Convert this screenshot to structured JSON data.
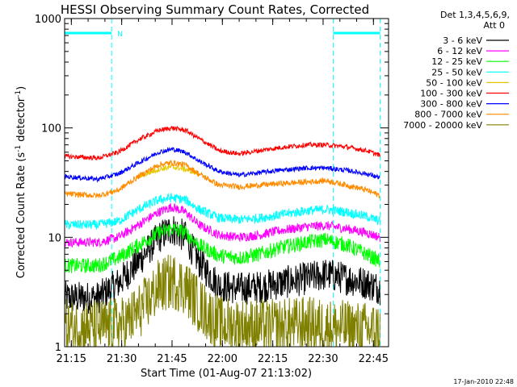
{
  "chart_data": {
    "type": "line",
    "title": "HESSI Observing Summary Count Rates, Corrected",
    "xlabel": "Start Time (01-Aug-07 21:13:02)",
    "ylabel_main": "Corrected Count Rate (s",
    "ylabel_sup1": "-1",
    "ylabel_mid": " detector",
    "ylabel_sup2": "-1",
    "ylabel_end": ")",
    "y_scale": "log",
    "ylim": [
      1,
      1000
    ],
    "x_unit": "minutes since 21:13:02",
    "xlim": [
      0,
      96.5
    ],
    "x_ticks": [
      {
        "label": "21:15",
        "value": 2
      },
      {
        "label": "21:30",
        "value": 17
      },
      {
        "label": "21:45",
        "value": 32
      },
      {
        "label": "22:00",
        "value": 47
      },
      {
        "label": "22:15",
        "value": 62
      },
      {
        "label": "22:30",
        "value": 77
      },
      {
        "label": "22:45",
        "value": 92
      }
    ],
    "y_ticks": [
      {
        "label": "1",
        "value": 1
      },
      {
        "label": "10",
        "value": 10
      },
      {
        "label": "100",
        "value": 100
      },
      {
        "label": "1000",
        "value": 1000
      }
    ],
    "legend_header_1": "Det 1,3,4,5,6,9,",
    "legend_header_2": "Att 0",
    "legend_placement": "outside-right",
    "night_marks": [
      14,
      80,
      94
    ],
    "night_label": "N",
    "night_bars": [
      [
        0,
        14
      ],
      [
        80,
        94
      ]
    ],
    "series": [
      {
        "name": "3 - 6 keV",
        "color": "#000000",
        "points": [
          [
            0,
            2.8
          ],
          [
            10,
            2.8
          ],
          [
            16,
            3.8
          ],
          [
            22,
            6
          ],
          [
            28,
            10
          ],
          [
            32,
            12
          ],
          [
            36,
            10
          ],
          [
            40,
            6
          ],
          [
            46,
            3.6
          ],
          [
            52,
            3.4
          ],
          [
            58,
            3.5
          ],
          [
            64,
            3.8
          ],
          [
            72,
            4.2
          ],
          [
            78,
            4.6
          ],
          [
            84,
            4.2
          ],
          [
            90,
            3.8
          ],
          [
            94,
            3.4
          ]
        ]
      },
      {
        "name": "6 - 12 keV",
        "color": "#ff00ff",
        "points": [
          [
            0,
            9
          ],
          [
            10,
            9
          ],
          [
            16,
            10
          ],
          [
            22,
            13
          ],
          [
            28,
            17
          ],
          [
            32,
            19
          ],
          [
            36,
            17
          ],
          [
            40,
            13
          ],
          [
            46,
            10.5
          ],
          [
            52,
            10
          ],
          [
            58,
            10.5
          ],
          [
            64,
            11.5
          ],
          [
            72,
            12.5
          ],
          [
            78,
            12.8
          ],
          [
            84,
            12
          ],
          [
            90,
            11
          ],
          [
            94,
            10
          ]
        ]
      },
      {
        "name": "12 - 25 keV",
        "color": "#00ff00",
        "points": [
          [
            0,
            5.5
          ],
          [
            10,
            5.5
          ],
          [
            16,
            6.5
          ],
          [
            22,
            8.5
          ],
          [
            28,
            11
          ],
          [
            32,
            12
          ],
          [
            36,
            11
          ],
          [
            40,
            8.5
          ],
          [
            46,
            6.8
          ],
          [
            52,
            6.5
          ],
          [
            58,
            7
          ],
          [
            64,
            8
          ],
          [
            72,
            9
          ],
          [
            78,
            9.5
          ],
          [
            84,
            8.5
          ],
          [
            90,
            7
          ],
          [
            94,
            6
          ]
        ]
      },
      {
        "name": "25 - 50 keV",
        "color": "#00ffff",
        "points": [
          [
            0,
            13
          ],
          [
            10,
            13
          ],
          [
            16,
            14
          ],
          [
            22,
            18
          ],
          [
            28,
            22
          ],
          [
            32,
            23
          ],
          [
            36,
            22
          ],
          [
            40,
            18
          ],
          [
            46,
            15
          ],
          [
            52,
            14.5
          ],
          [
            58,
            15
          ],
          [
            64,
            16
          ],
          [
            72,
            17.5
          ],
          [
            78,
            18
          ],
          [
            84,
            17
          ],
          [
            90,
            15.5
          ],
          [
            94,
            14
          ]
        ]
      },
      {
        "name": "50 - 100 keV",
        "color": "#e6c800",
        "points": [
          [
            22,
            36
          ],
          [
            28,
            42
          ],
          [
            32,
            44
          ],
          [
            36,
            42
          ],
          [
            40,
            38
          ]
        ]
      },
      {
        "name": "100 - 300 keV",
        "color": "#ff0000",
        "points": [
          [
            0,
            55
          ],
          [
            10,
            53
          ],
          [
            16,
            60
          ],
          [
            22,
            78
          ],
          [
            28,
            95
          ],
          [
            32,
            100
          ],
          [
            36,
            95
          ],
          [
            40,
            80
          ],
          [
            46,
            62
          ],
          [
            52,
            58
          ],
          [
            58,
            62
          ],
          [
            64,
            66
          ],
          [
            72,
            70
          ],
          [
            78,
            70
          ],
          [
            84,
            67
          ],
          [
            90,
            62
          ],
          [
            94,
            56
          ]
        ]
      },
      {
        "name": "300 - 800 keV",
        "color": "#0000ff",
        "points": [
          [
            0,
            36
          ],
          [
            10,
            34
          ],
          [
            16,
            38
          ],
          [
            22,
            48
          ],
          [
            28,
            60
          ],
          [
            32,
            64
          ],
          [
            36,
            60
          ],
          [
            40,
            50
          ],
          [
            46,
            40
          ],
          [
            52,
            37
          ],
          [
            58,
            39
          ],
          [
            64,
            41
          ],
          [
            72,
            43
          ],
          [
            78,
            43
          ],
          [
            84,
            41
          ],
          [
            90,
            38
          ],
          [
            94,
            35
          ]
        ]
      },
      {
        "name": "800 - 7000 keV",
        "color": "#ff8c00",
        "points": [
          [
            0,
            25
          ],
          [
            10,
            24
          ],
          [
            16,
            27
          ],
          [
            22,
            36
          ],
          [
            28,
            46
          ],
          [
            32,
            48
          ],
          [
            36,
            46
          ],
          [
            40,
            38
          ],
          [
            46,
            30
          ],
          [
            52,
            29
          ],
          [
            58,
            30
          ],
          [
            64,
            31
          ],
          [
            72,
            32
          ],
          [
            78,
            33
          ],
          [
            84,
            30
          ],
          [
            90,
            27
          ],
          [
            94,
            24
          ]
        ]
      },
      {
        "name": "7000 - 20000 keV",
        "color": "#808000",
        "points": [
          [
            0,
            1.5
          ],
          [
            10,
            1.5
          ],
          [
            18,
            1.6
          ],
          [
            24,
            2.4
          ],
          [
            28,
            3.5
          ],
          [
            32,
            4
          ],
          [
            36,
            3.5
          ],
          [
            40,
            2.4
          ],
          [
            46,
            1.6
          ],
          [
            60,
            1.5
          ],
          [
            72,
            1.6
          ],
          [
            80,
            1.5
          ],
          [
            94,
            1.4
          ]
        ]
      }
    ]
  },
  "footer": {
    "timestamp": "17-Jan-2010 22:48"
  }
}
